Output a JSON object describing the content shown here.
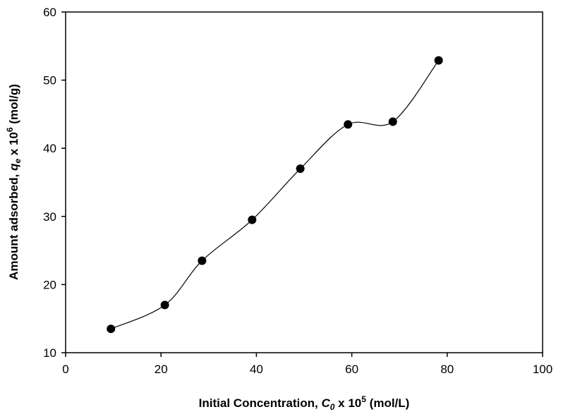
{
  "chart_data": {
    "type": "line",
    "xlabel": {
      "main": "Initial Concentration, ",
      "var": "C",
      "var_sub": "0",
      "mult": " x 10",
      "exp": "5",
      "unit": " (mol/L)"
    },
    "ylabel": {
      "main": "Amount  adsorbed, ",
      "var": "q",
      "var_sub": "e",
      "mult": " x 10",
      "exp": "6",
      "unit": " (mol/g)"
    },
    "xlim": [
      0,
      100
    ],
    "ylim": [
      10,
      60
    ],
    "xticks": [
      0,
      20,
      40,
      60,
      80,
      100
    ],
    "yticks": [
      10,
      20,
      30,
      40,
      50,
      60
    ],
    "xtick_labels": [
      "0",
      "20",
      "40",
      "60",
      "80",
      "100"
    ],
    "ytick_labels": [
      "10",
      "20",
      "30",
      "40",
      "50",
      "60"
    ],
    "grid": false,
    "series": [
      {
        "x": [
          9.5,
          20.8,
          28.6,
          39.1,
          49.2,
          59.2,
          68.6,
          78.2
        ],
        "y": [
          13.5,
          17.0,
          23.5,
          29.5,
          37.0,
          43.5,
          43.9,
          52.9
        ],
        "marker": "circle",
        "smooth": true,
        "color": "#000000"
      }
    ]
  }
}
